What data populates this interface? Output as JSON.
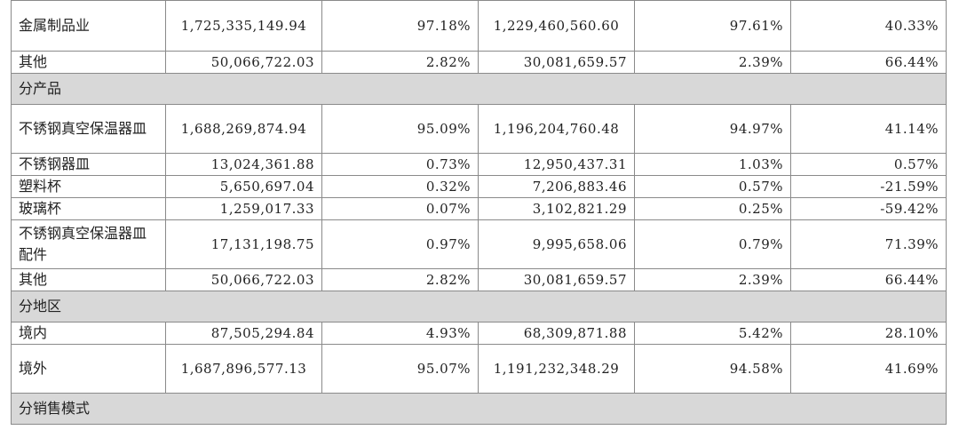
{
  "rows": [
    {
      "type": "data",
      "tall": true,
      "label": "金属制品业",
      "c1": "1,725,335,149.94",
      "c2": "97.18%",
      "c3": "1,229,460,560.60",
      "c4": "97.61%",
      "c5": "40.33%"
    },
    {
      "type": "data",
      "tall": false,
      "label": "其他",
      "c1": "50,066,722.03",
      "c2": "2.82%",
      "c3": "30,081,659.57",
      "c4": "2.39%",
      "c5": "66.44%"
    },
    {
      "type": "section",
      "label": "分产品"
    },
    {
      "type": "data",
      "tall": true,
      "label": "不锈钢真空保温器皿",
      "c1": "1,688,269,874.94",
      "c2": "95.09%",
      "c3": "1,196,204,760.48",
      "c4": "94.97%",
      "c5": "41.14%"
    },
    {
      "type": "data",
      "tall": false,
      "label": "不锈钢器皿",
      "c1": "13,024,361.88",
      "c2": "0.73%",
      "c3": "12,950,437.31",
      "c4": "1.03%",
      "c5": "0.57%"
    },
    {
      "type": "data",
      "tall": false,
      "label": "塑料杯",
      "c1": "5,650,697.04",
      "c2": "0.32%",
      "c3": "7,206,883.46",
      "c4": "0.57%",
      "c5": "-21.59%"
    },
    {
      "type": "data",
      "tall": false,
      "label": "玻璃杯",
      "c1": "1,259,017.33",
      "c2": "0.07%",
      "c3": "3,102,821.29",
      "c4": "0.25%",
      "c5": "-59.42%"
    },
    {
      "type": "data",
      "tall": true,
      "label": "不锈钢真空保温器皿配件",
      "c1": "17,131,198.75",
      "c2": "0.97%",
      "c3": "9,995,658.06",
      "c4": "0.79%",
      "c5": "71.39%"
    },
    {
      "type": "data",
      "tall": false,
      "label": "其他",
      "c1": "50,066,722.03",
      "c2": "2.82%",
      "c3": "30,081,659.57",
      "c4": "2.39%",
      "c5": "66.44%"
    },
    {
      "type": "section",
      "label": "分地区"
    },
    {
      "type": "data",
      "tall": false,
      "label": "境内",
      "c1": "87,505,294.84",
      "c2": "4.93%",
      "c3": "68,309,871.88",
      "c4": "5.42%",
      "c5": "28.10%"
    },
    {
      "type": "data",
      "tall": true,
      "label": "境外",
      "c1": "1,687,896,577.13",
      "c2": "95.07%",
      "c3": "1,191,232,348.29",
      "c4": "94.58%",
      "c5": "41.69%"
    },
    {
      "type": "section",
      "label": "分销售模式"
    }
  ]
}
